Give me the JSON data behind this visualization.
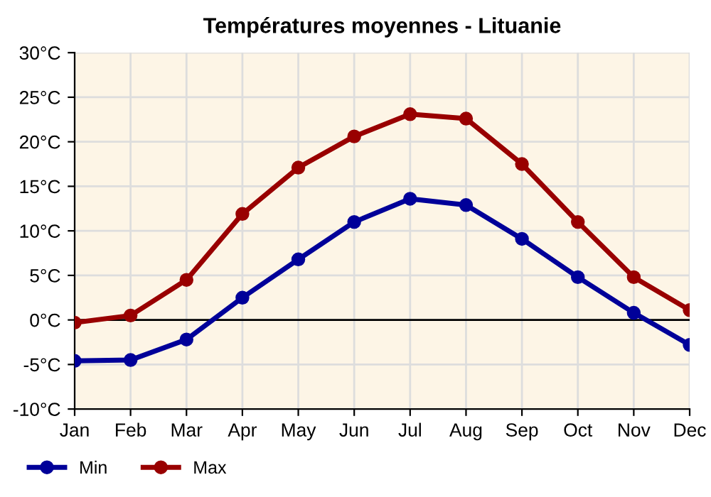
{
  "chart_data": {
    "type": "line",
    "title": "Températures moyennes - Lituanie",
    "categories": [
      "Jan",
      "Feb",
      "Mar",
      "Apr",
      "May",
      "Jun",
      "Jul",
      "Aug",
      "Sep",
      "Oct",
      "Nov",
      "Dec"
    ],
    "series": [
      {
        "name": "Min",
        "color": "#000099",
        "values": [
          -4.6,
          -4.5,
          -2.2,
          2.5,
          6.8,
          11.0,
          13.6,
          12.9,
          9.1,
          4.8,
          0.8,
          -2.8
        ]
      },
      {
        "name": "Max",
        "color": "#990000",
        "values": [
          -0.3,
          0.5,
          4.5,
          11.9,
          17.1,
          20.6,
          23.1,
          22.6,
          17.5,
          11.0,
          4.8,
          1.1
        ]
      }
    ],
    "ylim": [
      -10,
      30
    ],
    "yticks": [
      {
        "value": -10,
        "label": "-10°C"
      },
      {
        "value": -5,
        "label": "-5°C"
      },
      {
        "value": 0,
        "label": "0°C"
      },
      {
        "value": 5,
        "label": "5°C"
      },
      {
        "value": 10,
        "label": "10°C"
      },
      {
        "value": 15,
        "label": "15°C"
      },
      {
        "value": 20,
        "label": "20°C"
      },
      {
        "value": 25,
        "label": "25°C"
      },
      {
        "value": 30,
        "label": "30°C"
      }
    ],
    "ref_lines": [
      {
        "axis": "y",
        "value": 0,
        "color": "#000000"
      }
    ],
    "grid": true,
    "legend": "bottom left",
    "marker": "circle",
    "line_style": "solid"
  }
}
